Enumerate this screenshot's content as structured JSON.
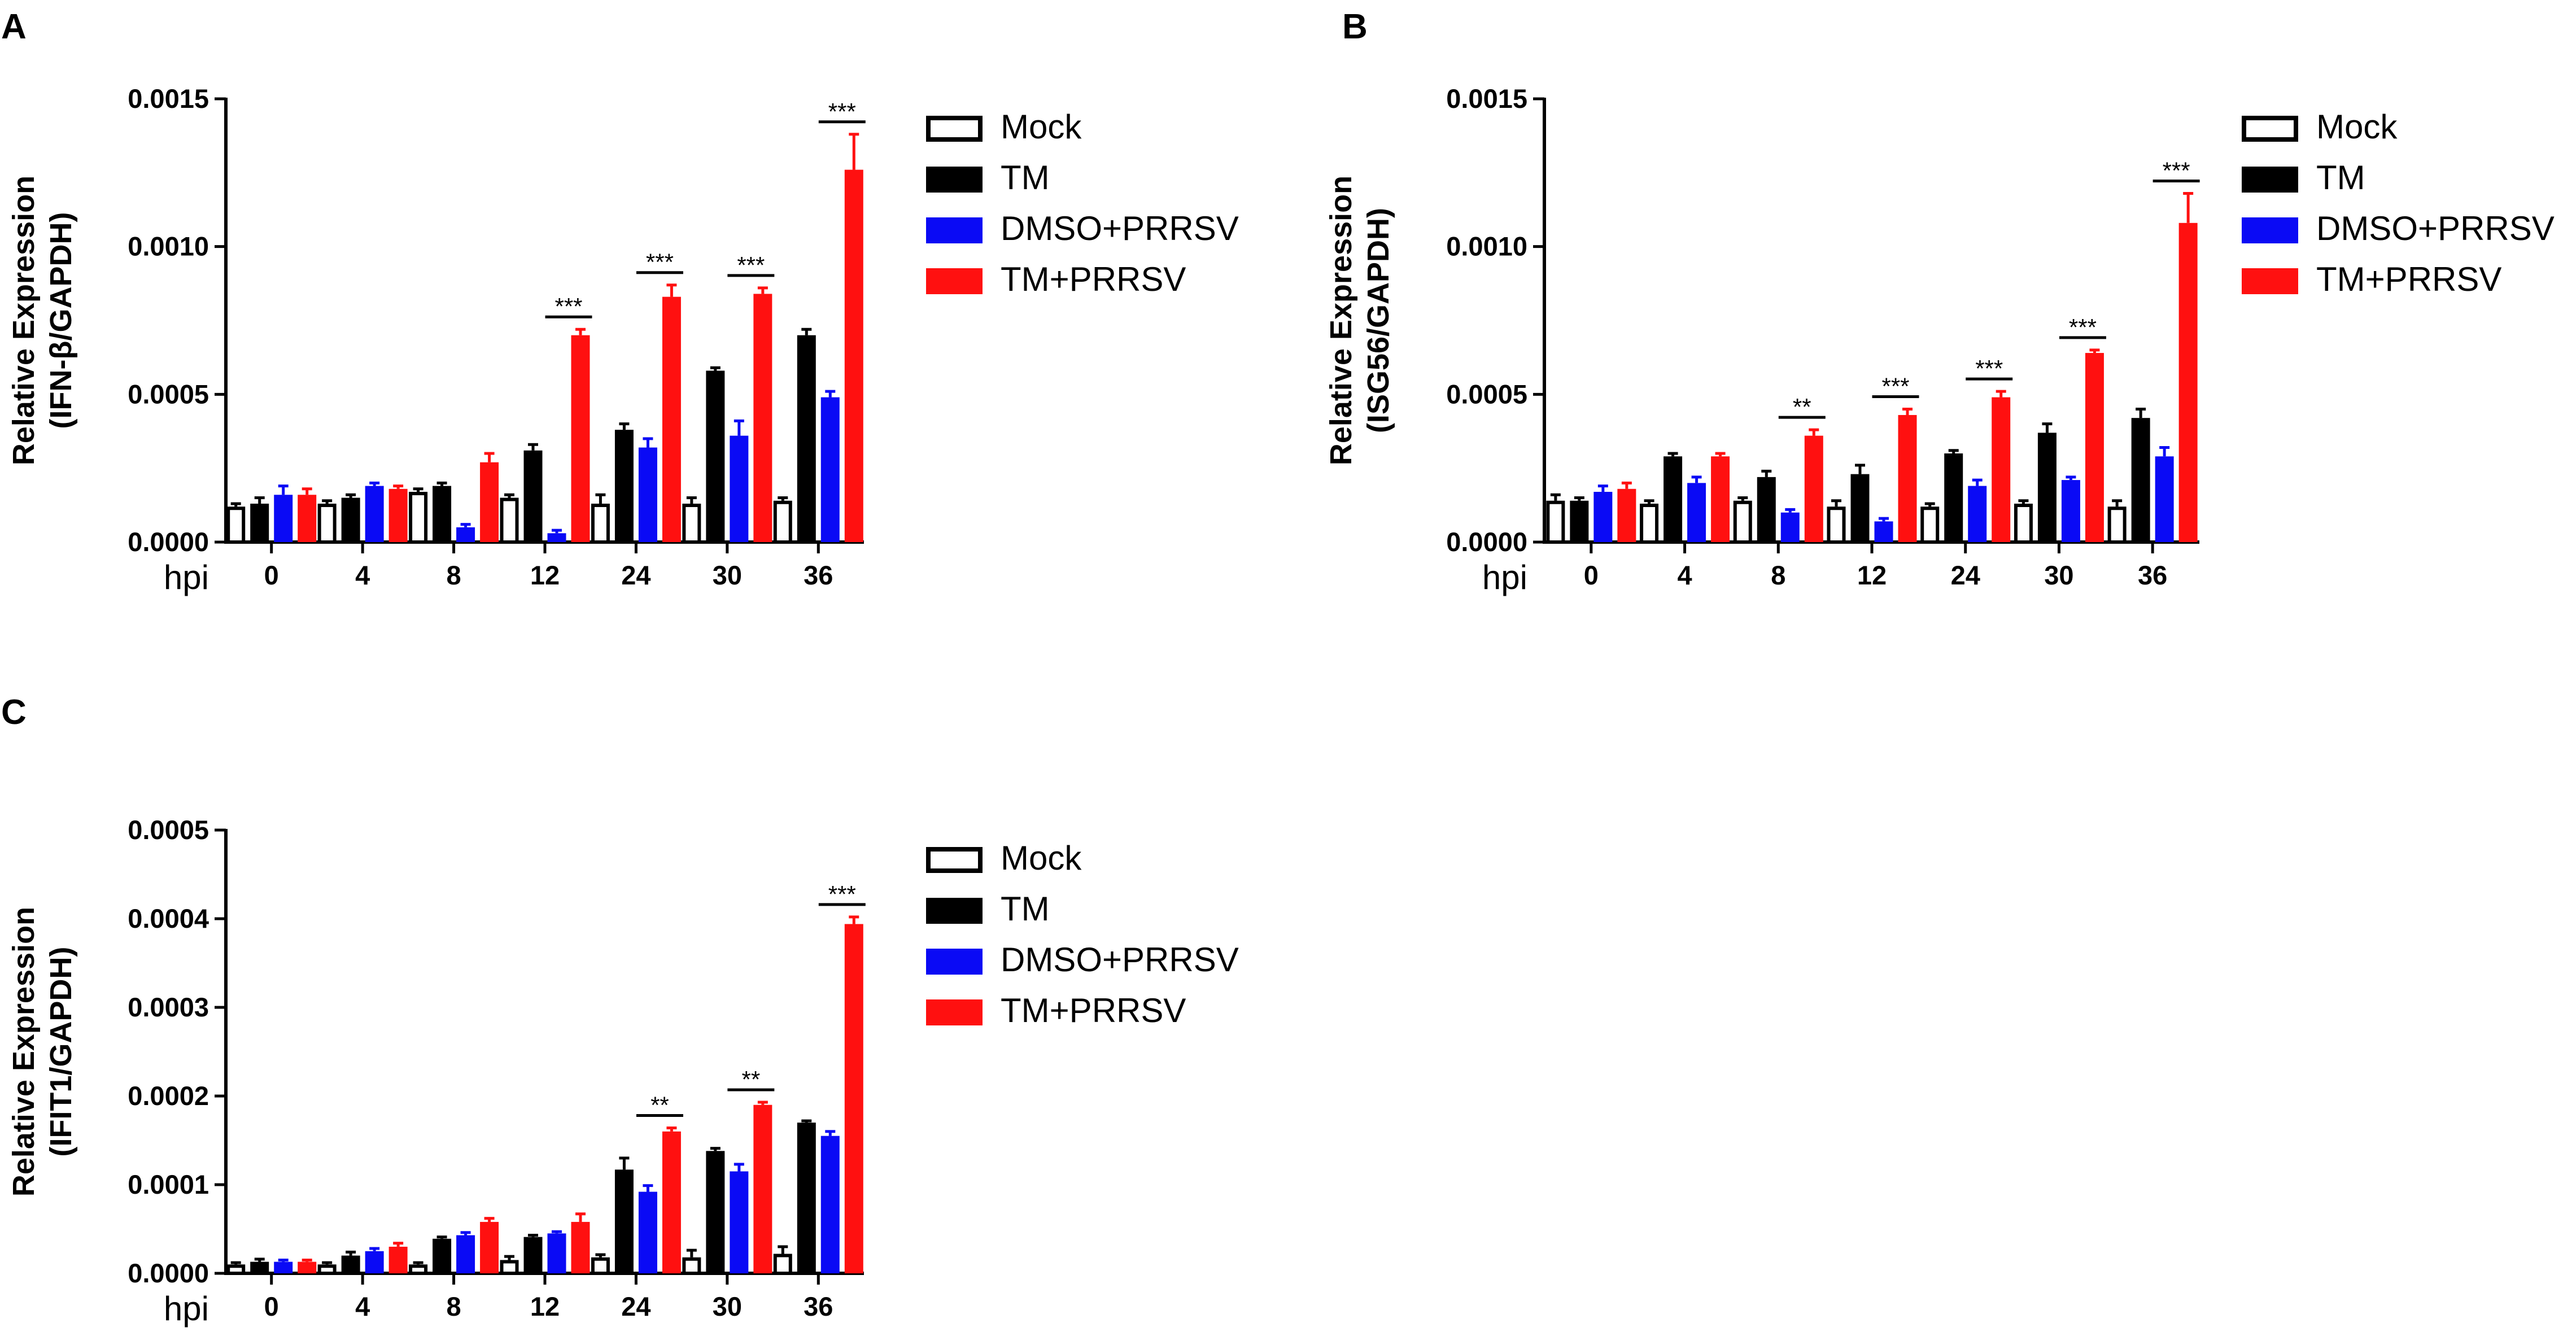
{
  "colors": {
    "mock_fill": "#ffffff",
    "mock_stroke": "#000000",
    "tm": "#000000",
    "dmso_prrsv": "#0a0af5",
    "tm_prrsv": "#ff1010",
    "axis": "#000000"
  },
  "chart_data": [
    {
      "panel": "A",
      "type": "bar",
      "ylabel_line1": "Relative Expression",
      "ylabel_line2": "(IFN-β/GAPDH)",
      "x_prefix": "hpi",
      "categories": [
        "0",
        "4",
        "8",
        "12",
        "24",
        "30",
        "36"
      ],
      "ylim": [
        0,
        0.0015
      ],
      "yticks": [
        0,
        0.0005,
        0.001,
        0.0015
      ],
      "ytick_labels": [
        "0.0000",
        "0.0005",
        "0.0010",
        "0.0015"
      ],
      "legend_position": "right",
      "series": [
        {
          "name": "Mock",
          "values": [
            0.00012,
            0.00013,
            0.00017,
            0.00015,
            0.00013,
            0.00013,
            0.00014
          ],
          "errors": [
            1e-05,
            1e-05,
            1e-05,
            1e-05,
            3e-05,
            2e-05,
            1e-05
          ]
        },
        {
          "name": "TM",
          "values": [
            0.00013,
            0.00015,
            0.00019,
            0.00031,
            0.00038,
            0.00058,
            0.0007
          ],
          "errors": [
            2e-05,
            1e-05,
            1e-05,
            2e-05,
            2e-05,
            1e-05,
            2e-05
          ]
        },
        {
          "name": "DMSO+PRRSV",
          "values": [
            0.00016,
            0.00019,
            5e-05,
            3e-05,
            0.00032,
            0.00036,
            0.00049
          ],
          "errors": [
            3e-05,
            1e-05,
            1e-05,
            1e-05,
            3e-05,
            5e-05,
            2e-05
          ]
        },
        {
          "name": "TM+PRRSV",
          "values": [
            0.00016,
            0.00018,
            0.00027,
            0.0007,
            0.00083,
            0.00084,
            0.00126
          ],
          "errors": [
            2e-05,
            1e-05,
            3e-05,
            2e-05,
            4e-05,
            2e-05,
            0.00012
          ]
        }
      ],
      "significance": [
        {
          "category": "12",
          "label": "***"
        },
        {
          "category": "24",
          "label": "***"
        },
        {
          "category": "30",
          "label": "***"
        },
        {
          "category": "36",
          "label": "***"
        }
      ]
    },
    {
      "panel": "B",
      "type": "bar",
      "ylabel_line1": "Relative Expression",
      "ylabel_line2": "(ISG56/GAPDH)",
      "x_prefix": "hpi",
      "categories": [
        "0",
        "4",
        "8",
        "12",
        "24",
        "30",
        "36"
      ],
      "ylim": [
        0,
        0.0015
      ],
      "yticks": [
        0,
        0.0005,
        0.001,
        0.0015
      ],
      "ytick_labels": [
        "0.0000",
        "0.0005",
        "0.0010",
        "0.0015"
      ],
      "legend_position": "right",
      "series": [
        {
          "name": "Mock",
          "values": [
            0.00014,
            0.00013,
            0.00014,
            0.00012,
            0.00012,
            0.00013,
            0.00012
          ],
          "errors": [
            2e-05,
            1e-05,
            1e-05,
            2e-05,
            1e-05,
            1e-05,
            2e-05
          ]
        },
        {
          "name": "TM",
          "values": [
            0.00014,
            0.00029,
            0.00022,
            0.00023,
            0.0003,
            0.00037,
            0.00042
          ],
          "errors": [
            1e-05,
            1e-05,
            2e-05,
            3e-05,
            1e-05,
            3e-05,
            3e-05
          ]
        },
        {
          "name": "DMSO+PRRSV",
          "values": [
            0.00017,
            0.0002,
            0.0001,
            7e-05,
            0.00019,
            0.00021,
            0.00029
          ],
          "errors": [
            2e-05,
            2e-05,
            1e-05,
            1e-05,
            2e-05,
            1e-05,
            3e-05
          ]
        },
        {
          "name": "TM+PRRSV",
          "values": [
            0.00018,
            0.00029,
            0.00036,
            0.00043,
            0.00049,
            0.00064,
            0.00108
          ],
          "errors": [
            2e-05,
            1e-05,
            2e-05,
            2e-05,
            2e-05,
            1e-05,
            0.0001
          ]
        }
      ],
      "significance": [
        {
          "category": "8",
          "label": "**"
        },
        {
          "category": "12",
          "label": "***"
        },
        {
          "category": "24",
          "label": "***"
        },
        {
          "category": "30",
          "label": "***"
        },
        {
          "category": "36",
          "label": "***"
        }
      ]
    },
    {
      "panel": "C",
      "type": "bar",
      "ylabel_line1": "Relative Expression",
      "ylabel_line2": "(IFIT1/GAPDH)",
      "x_prefix": "hpi",
      "categories": [
        "0",
        "4",
        "8",
        "12",
        "24",
        "30",
        "36"
      ],
      "ylim": [
        0,
        0.0005
      ],
      "yticks": [
        0,
        0.0001,
        0.0002,
        0.0003,
        0.0004,
        0.0005
      ],
      "ytick_labels": [
        "0.0000",
        "0.0001",
        "0.0002",
        "0.0003",
        "0.0004",
        "0.0005"
      ],
      "legend_position": "right",
      "series": [
        {
          "name": "Mock",
          "values": [
            1e-05,
            1e-05,
            1e-05,
            1.5e-05,
            1.8e-05,
            1.8e-05,
            2.2e-05
          ],
          "errors": [
            2e-06,
            2e-06,
            2e-06,
            4e-06,
            3e-06,
            8e-06,
            8e-06
          ]
        },
        {
          "name": "TM",
          "values": [
            1.3e-05,
            2e-05,
            3.9e-05,
            4.1e-05,
            0.000117,
            0.000138,
            0.00017
          ],
          "errors": [
            3e-06,
            4e-06,
            2e-06,
            2e-06,
            1.3e-05,
            3e-06,
            2e-06
          ]
        },
        {
          "name": "DMSO+PRRSV",
          "values": [
            1.3e-05,
            2.5e-05,
            4.3e-05,
            4.5e-05,
            9.2e-05,
            0.000115,
            0.000155
          ],
          "errors": [
            2e-06,
            3e-06,
            3e-06,
            2e-06,
            7e-06,
            8e-06,
            5e-06
          ]
        },
        {
          "name": "TM+PRRSV",
          "values": [
            1.3e-05,
            3e-05,
            5.8e-05,
            5.8e-05,
            0.00016,
            0.00019,
            0.000394
          ],
          "errors": [
            2e-06,
            4e-06,
            4e-06,
            9e-06,
            4e-06,
            3e-06,
            8e-06
          ]
        }
      ],
      "significance": [
        {
          "category": "24",
          "label": "**"
        },
        {
          "category": "30",
          "label": "**"
        },
        {
          "category": "36",
          "label": "***"
        }
      ]
    }
  ]
}
